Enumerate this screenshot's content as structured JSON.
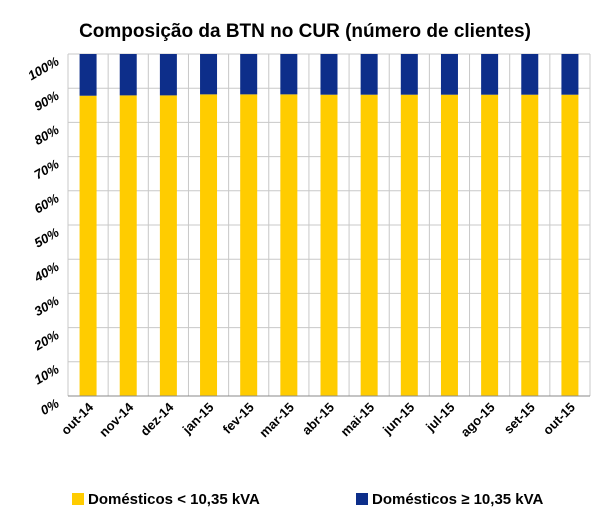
{
  "chart_data": {
    "type": "stacked_bar",
    "title": "Composição da BTN no CUR (número de clientes)",
    "categories": [
      "out-14",
      "nov-14",
      "dez-14",
      "jan-15",
      "fev-15",
      "mar-15",
      "abr-15",
      "mai-15",
      "jun-15",
      "jul-15",
      "ago-15",
      "set-15",
      "out-15"
    ],
    "series": [
      {
        "name": "Domésticos < 10,35 kVA",
        "color": "#ffcc00",
        "values": [
          87.8,
          87.9,
          87.9,
          88.2,
          88.2,
          88.2,
          88.1,
          88.1,
          88.1,
          88.1,
          88.1,
          88.1,
          88.1
        ]
      },
      {
        "name": "Domésticos ≥ 10,35 kVA",
        "color": "#0d2e8a",
        "values": [
          12.2,
          12.1,
          12.1,
          11.8,
          11.8,
          11.8,
          11.9,
          11.9,
          11.9,
          11.9,
          11.9,
          11.9,
          11.9
        ]
      }
    ],
    "ylim": [
      0,
      100
    ],
    "yticks": [
      {
        "value": 0,
        "label": "0%"
      },
      {
        "value": 10,
        "label": "10%"
      },
      {
        "value": 20,
        "label": "20%"
      },
      {
        "value": 30,
        "label": "30%"
      },
      {
        "value": 40,
        "label": "40%"
      },
      {
        "value": 50,
        "label": "50%"
      },
      {
        "value": 60,
        "label": "60%"
      },
      {
        "value": 70,
        "label": "70%"
      },
      {
        "value": 80,
        "label": "80%"
      },
      {
        "value": 90,
        "label": "90%"
      },
      {
        "value": 100,
        "label": "100%"
      }
    ],
    "grid": true,
    "legend": "bottom"
  }
}
